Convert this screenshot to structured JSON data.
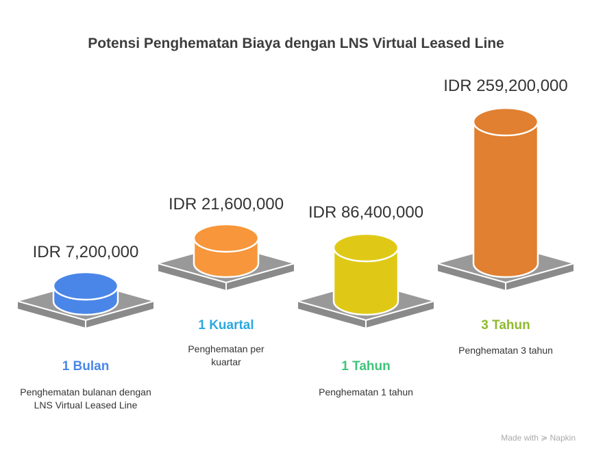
{
  "chart_data": {
    "type": "bar",
    "title": "Potensi Penghematan Biaya dengan LNS Virtual Leased Line",
    "categories": [
      "1 Bulan",
      "1 Kuartal",
      "1 Tahun",
      "3 Tahun"
    ],
    "values": [
      7200000,
      21600000,
      86400000,
      259200000
    ],
    "value_labels": [
      "IDR 7,200,000",
      "IDR 21,600,000",
      "IDR 86,400,000",
      "IDR 259,200,000"
    ],
    "descriptions": [
      "Penghematan bulanan dengan LNS Virtual Leased Line",
      "Penghematan per kuartar",
      "Penghematan 1 tahun",
      "Penghematan 3 tahun"
    ],
    "bar_colors": [
      "#4a86e8",
      "#f7963a",
      "#e0c916",
      "#e08030"
    ],
    "label_colors": [
      "#4a86e8",
      "#29a8e0",
      "#3ec47a",
      "#8fba2e"
    ],
    "platform_color": "#999999"
  },
  "watermark": "Made with ≽ Napkin"
}
